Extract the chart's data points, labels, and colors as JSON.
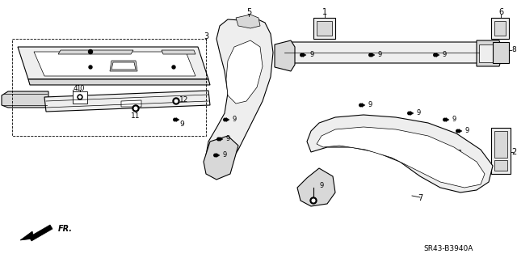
{
  "bg_color": "#ffffff",
  "line_color": "#000000",
  "part_number_ref": "SR43-B3940A",
  "gray_fill": "#d8d8d8",
  "light_gray": "#eeeeee",
  "mid_gray": "#c8c8c8"
}
